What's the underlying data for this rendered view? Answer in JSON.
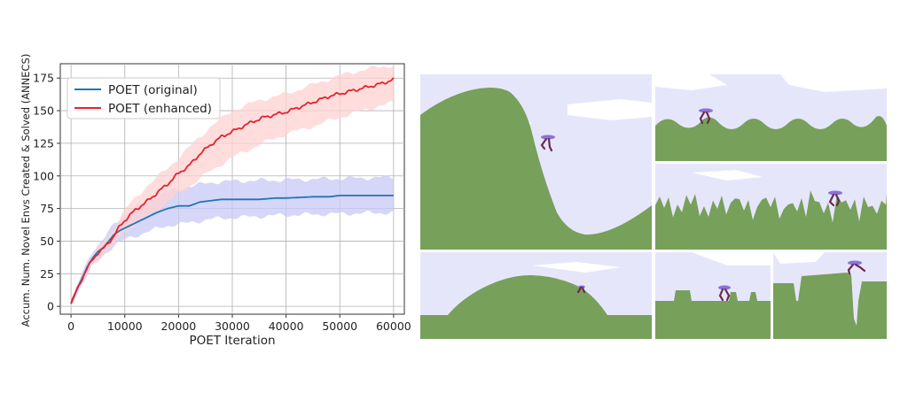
{
  "chart_data": {
    "type": "line",
    "title": "",
    "xlabel": "POET Iteration",
    "ylabel": "Accum. Num. Novel Envs Created & Solved (ANNECS)",
    "xlim": [
      -2000,
      62000
    ],
    "ylim": [
      -6,
      186
    ],
    "xticks": [
      0,
      10000,
      20000,
      30000,
      40000,
      50000,
      60000
    ],
    "yticks": [
      0,
      25,
      50,
      75,
      100,
      125,
      150,
      175
    ],
    "grid": true,
    "legend_position": "top-left",
    "series": [
      {
        "name": "POET (original)",
        "color": "#1f77b4",
        "band_color": "#c8c8f5",
        "points": [
          [
            0,
            2
          ],
          [
            1000,
            12
          ],
          [
            2000,
            21
          ],
          [
            3000,
            30
          ],
          [
            4000,
            37
          ],
          [
            5000,
            42
          ],
          [
            6000,
            45
          ],
          [
            7000,
            50
          ],
          [
            8000,
            55
          ],
          [
            9000,
            58
          ],
          [
            10000,
            60
          ],
          [
            12000,
            64
          ],
          [
            14000,
            68
          ],
          [
            16000,
            72
          ],
          [
            18000,
            75
          ],
          [
            20000,
            77
          ],
          [
            22000,
            77
          ],
          [
            24000,
            80
          ],
          [
            26000,
            81
          ],
          [
            28000,
            82
          ],
          [
            30000,
            82
          ],
          [
            35000,
            82
          ],
          [
            38000,
            83
          ],
          [
            40000,
            83
          ],
          [
            45000,
            84
          ],
          [
            48000,
            84
          ],
          [
            50000,
            85
          ],
          [
            55000,
            85
          ],
          [
            60000,
            85
          ]
        ],
        "lower": [
          [
            0,
            1
          ],
          [
            2000,
            17
          ],
          [
            4000,
            31
          ],
          [
            6000,
            39
          ],
          [
            8000,
            47
          ],
          [
            10000,
            51
          ],
          [
            14000,
            57
          ],
          [
            18000,
            62
          ],
          [
            22000,
            64
          ],
          [
            26000,
            67
          ],
          [
            30000,
            68
          ],
          [
            40000,
            70
          ],
          [
            50000,
            71
          ],
          [
            60000,
            72
          ]
        ],
        "upper": [
          [
            0,
            3
          ],
          [
            2000,
            25
          ],
          [
            4000,
            43
          ],
          [
            6000,
            51
          ],
          [
            8000,
            63
          ],
          [
            10000,
            70
          ],
          [
            14000,
            81
          ],
          [
            18000,
            88
          ],
          [
            22000,
            92
          ],
          [
            26000,
            95
          ],
          [
            30000,
            96
          ],
          [
            40000,
            97
          ],
          [
            50000,
            98
          ],
          [
            60000,
            99
          ]
        ]
      },
      {
        "name": "POET (enhanced)",
        "color": "#e8212b",
        "band_color": "#ffd2d2",
        "points": [
          [
            0,
            2
          ],
          [
            1000,
            12
          ],
          [
            2000,
            21
          ],
          [
            3000,
            29
          ],
          [
            4000,
            36
          ],
          [
            5000,
            41
          ],
          [
            6000,
            44
          ],
          [
            7000,
            49
          ],
          [
            8000,
            54
          ],
          [
            9000,
            61
          ],
          [
            10000,
            66
          ],
          [
            12000,
            74
          ],
          [
            14000,
            80
          ],
          [
            16000,
            87
          ],
          [
            18000,
            94
          ],
          [
            20000,
            102
          ],
          [
            22000,
            108
          ],
          [
            24000,
            117
          ],
          [
            26000,
            124
          ],
          [
            28000,
            130
          ],
          [
            30000,
            134
          ],
          [
            32000,
            138
          ],
          [
            34000,
            142
          ],
          [
            36000,
            145
          ],
          [
            38000,
            147
          ],
          [
            40000,
            149
          ],
          [
            42000,
            152
          ],
          [
            44000,
            155
          ],
          [
            46000,
            158
          ],
          [
            48000,
            161
          ],
          [
            50000,
            163
          ],
          [
            52000,
            165
          ],
          [
            54000,
            167
          ],
          [
            56000,
            169
          ],
          [
            58000,
            171
          ],
          [
            60000,
            174
          ]
        ],
        "lower": [
          [
            0,
            1
          ],
          [
            2000,
            18
          ],
          [
            4000,
            32
          ],
          [
            6000,
            40
          ],
          [
            8000,
            47
          ],
          [
            10000,
            58
          ],
          [
            14000,
            68
          ],
          [
            18000,
            80
          ],
          [
            22000,
            92
          ],
          [
            26000,
            104
          ],
          [
            30000,
            114
          ],
          [
            35000,
            124
          ],
          [
            40000,
            132
          ],
          [
            45000,
            138
          ],
          [
            50000,
            145
          ],
          [
            55000,
            151
          ],
          [
            60000,
            156
          ]
        ],
        "upper": [
          [
            0,
            3
          ],
          [
            2000,
            24
          ],
          [
            4000,
            40
          ],
          [
            6000,
            49
          ],
          [
            8000,
            60
          ],
          [
            10000,
            74
          ],
          [
            14000,
            92
          ],
          [
            18000,
            106
          ],
          [
            22000,
            122
          ],
          [
            26000,
            138
          ],
          [
            30000,
            150
          ],
          [
            35000,
            158
          ],
          [
            40000,
            163
          ],
          [
            45000,
            170
          ],
          [
            50000,
            177
          ],
          [
            55000,
            182
          ],
          [
            60000,
            185
          ]
        ]
      }
    ]
  },
  "environments": {
    "description_note": "",
    "sky_color": "#e6e6fb",
    "ground_color": "#77a05a",
    "agent_head_color": "#8a72d6",
    "agent_leg_color": "#6a2a4e"
  }
}
